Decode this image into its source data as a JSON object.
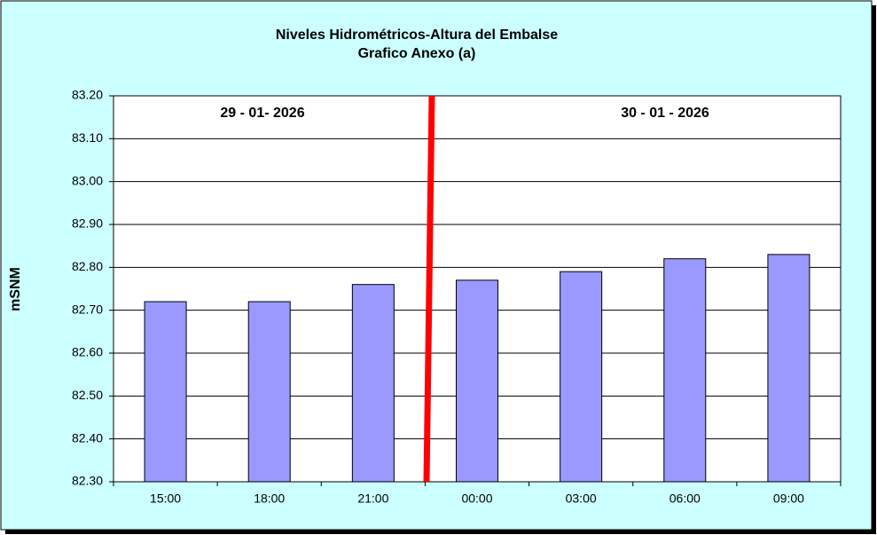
{
  "chart_data": {
    "type": "bar",
    "title": "Niveles Hidrométricos-Altura del Embalse",
    "subtitle": "Grafico Anexo (a)",
    "y_label": "mSNM",
    "annotations": [
      "29 - 01- 2026",
      "30 - 01 - 2026"
    ],
    "categories": [
      "15:00",
      "18:00",
      "21:00",
      "00:00",
      "03:00",
      "06:00",
      "09:00"
    ],
    "values": [
      82.72,
      82.72,
      82.76,
      82.77,
      82.79,
      82.82,
      82.83
    ],
    "color": "#9999ff",
    "ylim": [
      82.3,
      83.2
    ],
    "yticks": [
      {
        "value": 82.3,
        "label": "82.30"
      },
      {
        "value": 82.4,
        "label": "82.40"
      },
      {
        "value": 82.5,
        "label": "82.50"
      },
      {
        "value": 82.6,
        "label": "82.60"
      },
      {
        "value": 82.7,
        "label": "82.70"
      },
      {
        "value": 82.8,
        "label": "82.80"
      },
      {
        "value": 82.9,
        "label": "82.90"
      },
      {
        "value": 83.0,
        "label": "83.00"
      },
      {
        "value": 83.1,
        "label": "83.10"
      },
      {
        "value": 83.2,
        "label": "83.20"
      }
    ],
    "grid": true
  }
}
